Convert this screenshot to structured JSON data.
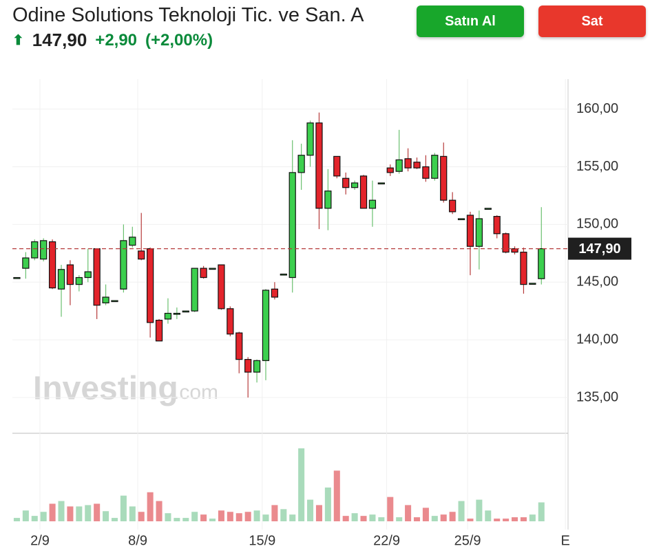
{
  "header": {
    "title": "Odine Solutions Teknoloji Tic. ve San. A",
    "price": "147,90",
    "change": "+2,90",
    "change_pct": "(+2,00%)",
    "buy_button": "Satın Al",
    "sell_button": "Sat",
    "watermark": "Investing",
    "watermark_suffix": ".com"
  },
  "chart_data": {
    "type": "candlestick",
    "open": [
      145.4,
      146.2,
      147.1,
      147.0,
      148.5,
      144.4,
      146.5,
      144.8,
      145.4,
      147.9,
      143.2,
      143.4,
      144.4,
      148.2,
      147.7,
      147.9,
      141.7,
      141.8,
      142.3,
      142.5,
      142.5,
      146.2,
      146.2,
      146.5,
      142.7,
      140.6,
      138.3,
      137.2,
      138.2,
      144.4,
      145.7,
      145.4,
      154.5,
      156.0,
      158.8,
      151.4,
      155.9,
      154.0,
      153.2,
      154.2,
      151.4,
      153.6,
      154.9,
      154.6,
      155.7,
      155.4,
      155.0,
      154.0,
      155.9,
      152.1,
      150.5,
      150.8,
      148.1,
      151.4,
      150.7,
      149.2,
      147.9,
      147.6,
      144.9,
      145.3
    ],
    "high": [
      145.4,
      147.6,
      148.7,
      148.8,
      148.7,
      146.5,
      146.9,
      145.6,
      147.9,
      147.9,
      144.8,
      143.4,
      150.0,
      149.8,
      151.0,
      148.0,
      141.8,
      143.6,
      142.8,
      142.5,
      146.2,
      146.4,
      146.2,
      146.5,
      142.9,
      140.7,
      138.5,
      138.3,
      144.4,
      145.0,
      145.7,
      157.3,
      157.0,
      159.0,
      159.7,
      154.8,
      155.9,
      154.5,
      153.8,
      154.3,
      153.8,
      153.6,
      155.2,
      158.2,
      156.6,
      155.8,
      156.0,
      156.2,
      157.1,
      152.8,
      150.5,
      151.1,
      151.2,
      151.4,
      150.8,
      149.3,
      148.1,
      148.0,
      144.9,
      151.5
    ],
    "low": [
      145.4,
      145.3,
      146.9,
      146.8,
      144.4,
      142.0,
      143.0,
      144.2,
      145.0,
      141.8,
      143.0,
      143.4,
      144.1,
      148.0,
      146.9,
      140.2,
      139.9,
      141.4,
      141.8,
      142.5,
      142.4,
      145.3,
      146.2,
      142.6,
      140.3,
      137.1,
      135.0,
      136.3,
      136.5,
      143.5,
      145.7,
      144.1,
      153.0,
      155.0,
      149.6,
      149.5,
      154.0,
      152.6,
      153.0,
      151.4,
      149.8,
      153.6,
      154.2,
      154.4,
      154.6,
      154.8,
      153.7,
      153.8,
      151.9,
      150.9,
      150.5,
      145.6,
      146.1,
      151.4,
      148.8,
      147.5,
      147.4,
      144.0,
      144.9,
      144.8
    ],
    "close": [
      145.4,
      147.1,
      148.5,
      148.6,
      144.5,
      146.1,
      144.8,
      145.4,
      145.9,
      143.0,
      143.7,
      143.4,
      148.6,
      148.9,
      147.0,
      141.5,
      139.9,
      142.3,
      142.3,
      142.5,
      146.2,
      145.4,
      146.2,
      142.7,
      140.5,
      138.3,
      137.2,
      138.2,
      144.3,
      143.7,
      145.7,
      154.5,
      156.0,
      158.8,
      151.4,
      152.9,
      154.2,
      153.2,
      153.6,
      151.4,
      152.1,
      153.6,
      154.5,
      155.6,
      154.9,
      154.9,
      154.0,
      156.0,
      152.1,
      151.1,
      150.5,
      148.1,
      150.5,
      151.4,
      149.2,
      147.6,
      147.6,
      144.8,
      144.9,
      147.9
    ],
    "volume": [
      5,
      16,
      8,
      14,
      26,
      30,
      22,
      22,
      24,
      26,
      15,
      5,
      38,
      22,
      14,
      43,
      30,
      12,
      5,
      5,
      14,
      10,
      4,
      16,
      14,
      12,
      14,
      16,
      10,
      24,
      18,
      10,
      108,
      32,
      24,
      50,
      75,
      8,
      12,
      8,
      10,
      6,
      36,
      6,
      24,
      6,
      20,
      8,
      10,
      14,
      30,
      4,
      32,
      16,
      4,
      4,
      6,
      6,
      10,
      28
    ],
    "ylim": [
      131.9,
      162.6
    ],
    "yticks": [
      {
        "value": 135,
        "label": "135,00"
      },
      {
        "value": 140,
        "label": "140,00"
      },
      {
        "value": 145,
        "label": "145,00"
      },
      {
        "value": 150,
        "label": "150,00"
      },
      {
        "value": 155,
        "label": "155,00"
      },
      {
        "value": 160,
        "label": "160,00"
      }
    ],
    "xlim": [
      -0.5,
      62
    ],
    "xticks": [
      {
        "value": 2.6,
        "label": "2/9"
      },
      {
        "value": 13.6,
        "label": "8/9"
      },
      {
        "value": 27.6,
        "label": "15/9"
      },
      {
        "value": 41.6,
        "label": "22/9"
      },
      {
        "value": 50.7,
        "label": "25/9"
      },
      {
        "value": 61.7,
        "label": "E"
      }
    ],
    "volume_lim": [
      0,
      115
    ],
    "last_price": {
      "value": 147.9,
      "label": "147,90"
    },
    "up_color": "#3ccf4e",
    "down_color": "#e3242b",
    "up_volume_color": "#a9dbbb",
    "down_volume_color": "#ea8a8e",
    "grid": true
  }
}
